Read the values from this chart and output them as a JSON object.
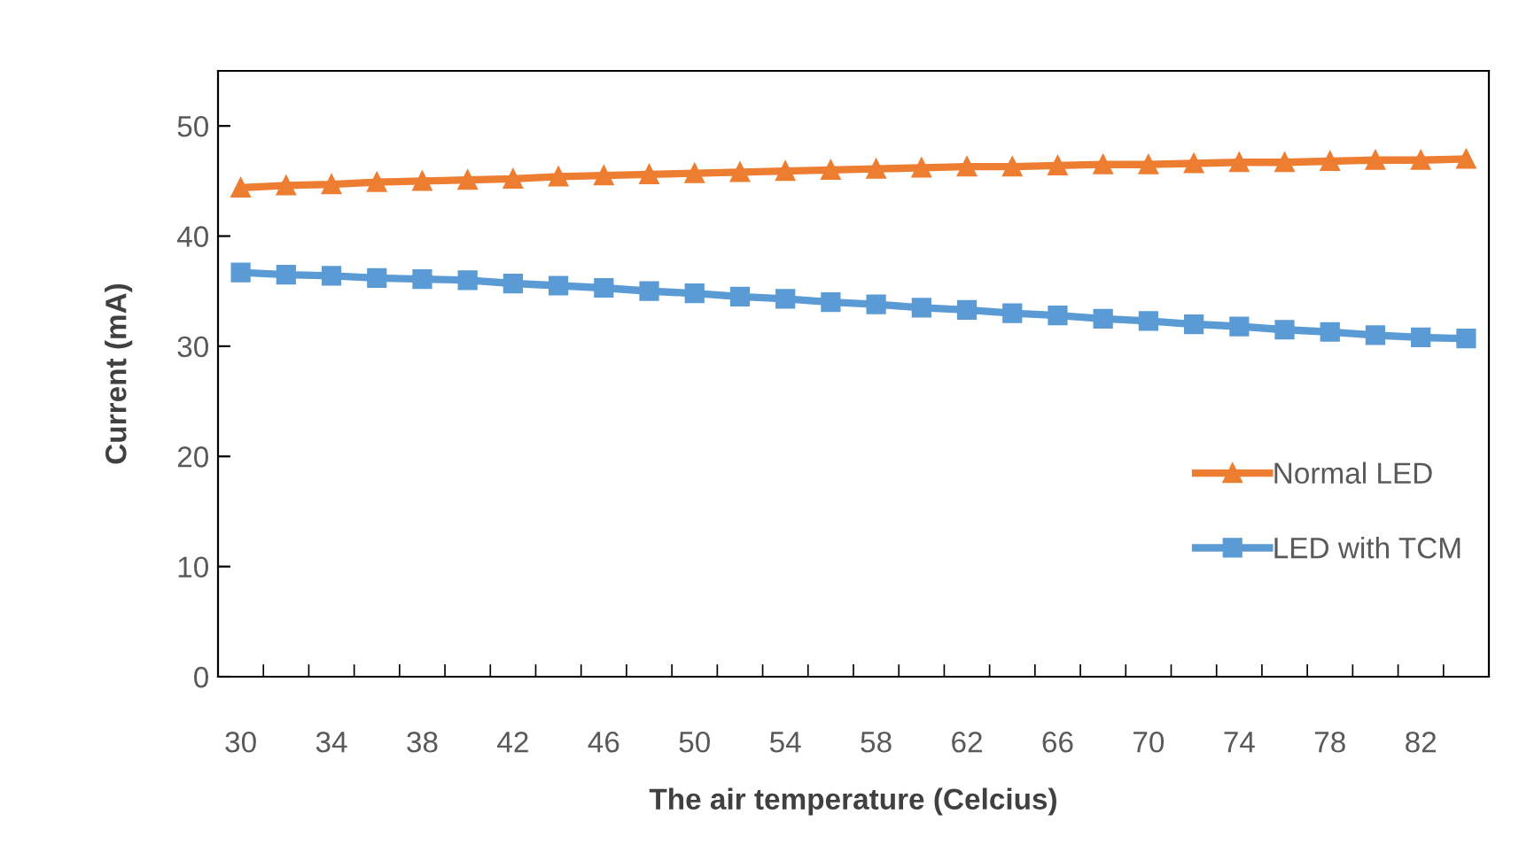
{
  "chart_data": {
    "type": "line",
    "xlabel": "The air temperature (Celcius)",
    "ylabel": "Current (mA)",
    "categories": [
      "30",
      null,
      "34",
      null,
      "38",
      null,
      "42",
      null,
      "46",
      null,
      "50",
      null,
      "54",
      null,
      "58",
      null,
      "62",
      null,
      "66",
      null,
      "70",
      null,
      "74",
      null,
      "78",
      null,
      "82",
      null
    ],
    "series": [
      {
        "name": "Normal LED",
        "color": "#ed7d31",
        "marker": "triangle",
        "values": [
          44.4,
          44.6,
          44.7,
          44.9,
          45.0,
          45.1,
          45.2,
          45.4,
          45.5,
          45.6,
          45.7,
          45.8,
          45.9,
          46.0,
          46.1,
          46.2,
          46.3,
          46.3,
          46.4,
          46.5,
          46.5,
          46.6,
          46.7,
          46.7,
          46.8,
          46.9,
          46.9,
          47.0
        ]
      },
      {
        "name": "LED with TCM",
        "color": "#5b9bd5",
        "marker": "square",
        "values": [
          36.7,
          36.5,
          36.4,
          36.2,
          36.1,
          36.0,
          35.7,
          35.5,
          35.3,
          35.0,
          34.8,
          34.5,
          34.3,
          34.0,
          33.8,
          33.5,
          33.3,
          33.0,
          32.8,
          32.5,
          32.3,
          32.0,
          31.8,
          31.5,
          31.3,
          31.0,
          30.8,
          30.7
        ]
      }
    ],
    "ylim": [
      0,
      55
    ],
    "yticks": [
      0,
      10,
      20,
      30,
      40,
      50
    ],
    "grid": false,
    "legend": "right"
  }
}
